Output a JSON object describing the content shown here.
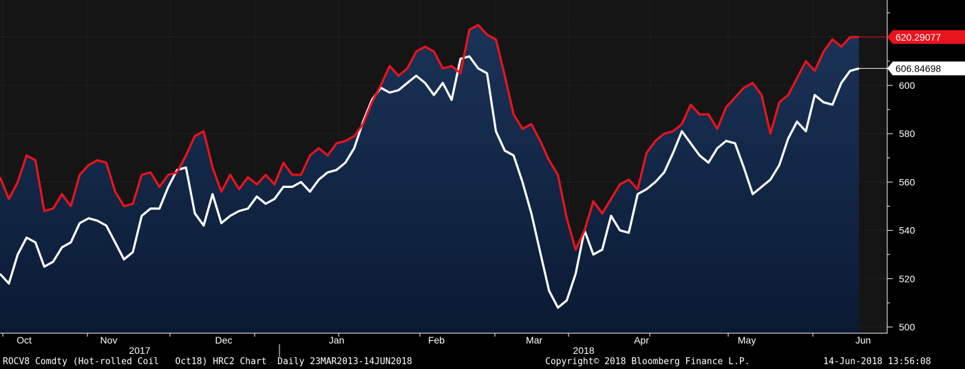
{
  "chart_data": {
    "type": "area",
    "ylim": [
      498,
      636
    ],
    "yticks": [
      500,
      520,
      540,
      560,
      580,
      600
    ],
    "x_month_labels": [
      "Oct",
      "Nov",
      "Dec",
      "Jan",
      "Feb",
      "Mar",
      "Apr",
      "May",
      "Jun"
    ],
    "x_year_labels": [
      "2017",
      "2018"
    ],
    "series": [
      {
        "color": "#e8141d",
        "last_value_label": "620.29077",
        "values": [
          562,
          553,
          560,
          571,
          569,
          548,
          549,
          555,
          550,
          563,
          567,
          569,
          568,
          556,
          550,
          551,
          563,
          564,
          558,
          563,
          564,
          571,
          579,
          581,
          566,
          556,
          563,
          557,
          562,
          559,
          563,
          559,
          568,
          563,
          563,
          571,
          574,
          571,
          576,
          577,
          579,
          584,
          593,
          600,
          608,
          604,
          607,
          614,
          616,
          614,
          607,
          608,
          605,
          623,
          625,
          621,
          619,
          604,
          588,
          582,
          584,
          577,
          569,
          563,
          545,
          532,
          540,
          552,
          547,
          553,
          559,
          561,
          557,
          572,
          577,
          580,
          581,
          584,
          592,
          588,
          588,
          582,
          591,
          595,
          599,
          601,
          596,
          580,
          593,
          596,
          603,
          610,
          606,
          614,
          619,
          616,
          620,
          620
        ]
      },
      {
        "color": "#ffffff",
        "last_value_label": "606.84698",
        "values": [
          522,
          518,
          530,
          537,
          535,
          525,
          527,
          533,
          535,
          543,
          545,
          544,
          542,
          535,
          528,
          531,
          546,
          549,
          549,
          558,
          565,
          566,
          547,
          542,
          555,
          543,
          546,
          548,
          549,
          554,
          551,
          553,
          558,
          558,
          560,
          556,
          561,
          564,
          565,
          568,
          574,
          585,
          594,
          599,
          597,
          598,
          601,
          604,
          601,
          596,
          601,
          594,
          611,
          612,
          607,
          605,
          581,
          573,
          571,
          560,
          547,
          531,
          515,
          508,
          511,
          522,
          540,
          530,
          532,
          546,
          540,
          539,
          555,
          557,
          560,
          564,
          572,
          581,
          576,
          571,
          568,
          574,
          577,
          576,
          566,
          555,
          558,
          561,
          567,
          578,
          585,
          581,
          596,
          593,
          592,
          601,
          606,
          607
        ]
      }
    ]
  },
  "footer": {
    "ticker": "ROCV8 Comdty (Hot-rolled Coil   Oct18) HRC2 Chart  Daily 23MAR2013-14JUN2018",
    "copyright": "Copyright© 2018 Bloomberg Finance L.P.",
    "timestamp": "14-Jun-2018 13:56:08"
  },
  "colors": {
    "background": "#000000",
    "plot_top": "#161515",
    "fill": "#14284a",
    "fill_dark": "#0a1a33",
    "grid": "#4a4a4a",
    "text": "#ffffff"
  }
}
